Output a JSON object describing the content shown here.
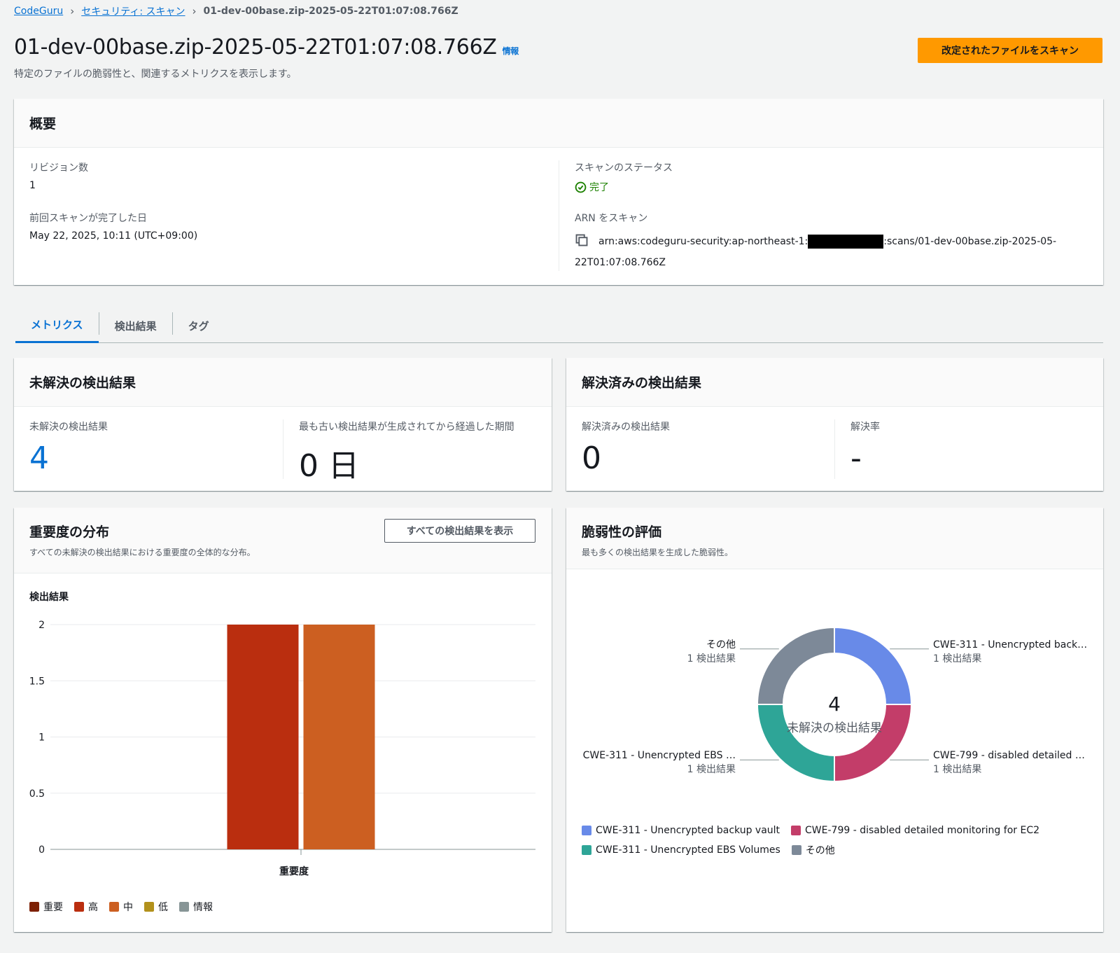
{
  "breadcrumb": {
    "root": "CodeGuru",
    "parent": "セキュリティ: スキャン",
    "current": "01-dev-00base.zip-2025-05-22T01:07:08.766Z"
  },
  "header": {
    "title": "01-dev-00base.zip-2025-05-22T01:07:08.766Z",
    "info": "情報",
    "subtitle": "特定のファイルの脆弱性と、関連するメトリクスを表示します。",
    "scan_button": "改定されたファイルをスキャン"
  },
  "overview": {
    "title": "概要",
    "revisions_label": "リビジョン数",
    "revisions_value": "1",
    "last_scan_label": "前回スキャンが完了した日",
    "last_scan_value": "May 22, 2025, 10:11 (UTC+09:00)",
    "status_label": "スキャンのステータス",
    "status_value": "完了",
    "arn_label": "ARN をスキャン",
    "arn_prefix": "arn:aws:codeguru-security:ap-northeast-1:",
    "arn_suffix": ":scans/01-dev-00base.zip-2025-05-",
    "arn_line2": "22T01:07:08.766Z"
  },
  "tabs": [
    "メトリクス",
    "検出結果",
    "タグ"
  ],
  "open_findings": {
    "title": "未解決の検出結果",
    "count_label": "未解決の検出結果",
    "count_value": "4",
    "age_label": "最も古い検出結果が生成されてから経過した期間",
    "age_value": "0 日"
  },
  "resolved_findings": {
    "title": "解決済みの検出結果",
    "count_label": "解決済みの検出結果",
    "count_value": "0",
    "rate_label": "解決率",
    "rate_value": "-"
  },
  "severity": {
    "title": "重要度の分布",
    "description": "すべての未解決の検出結果における重要度の全体的な分布。",
    "view_all_button": "すべての検出結果を表示"
  },
  "vuln": {
    "title": "脆弱性の評価",
    "description": "最も多くの検出結果を生成した脆弱性。"
  },
  "chart_data": [
    {
      "type": "bar",
      "ylabel": "検出結果",
      "xlabel": "重要度",
      "ylim": [
        0,
        2
      ],
      "yticks": [
        "0",
        "0.5",
        "1",
        "1.5",
        "2"
      ],
      "series": [
        {
          "name": "重要",
          "color": "#7d2105",
          "values": [
            0
          ]
        },
        {
          "name": "高",
          "color": "#ba2e0f",
          "values": [
            2
          ]
        },
        {
          "name": "中",
          "color": "#cc5f21",
          "values": [
            2
          ]
        },
        {
          "name": "低",
          "color": "#b2911c",
          "values": [
            0
          ]
        },
        {
          "name": "情報",
          "color": "#879596",
          "values": [
            0
          ]
        }
      ]
    },
    {
      "type": "pie",
      "center_value": "4",
      "center_label": "未解決の検出結果",
      "slices": [
        {
          "name": "CWE-311 - Unencrypted backup vault",
          "label": "CWE-311 - Unencrypted back…",
          "value": 1,
          "value_label": "1 検出結果",
          "color": "#688ae8"
        },
        {
          "name": "CWE-799 - disabled detailed monitoring for EC2",
          "label": "CWE-799 - disabled detailed …",
          "value": 1,
          "value_label": "1 検出結果",
          "color": "#c33d69"
        },
        {
          "name": "CWE-311 - Unencrypted EBS Volumes",
          "label": "CWE-311 - Unencrypted EBS …",
          "value": 1,
          "value_label": "1 検出結果",
          "color": "#2ea597"
        },
        {
          "name": "その他",
          "label": "その他",
          "value": 1,
          "value_label": "1 検出結果",
          "color": "#7d8998"
        }
      ]
    }
  ]
}
